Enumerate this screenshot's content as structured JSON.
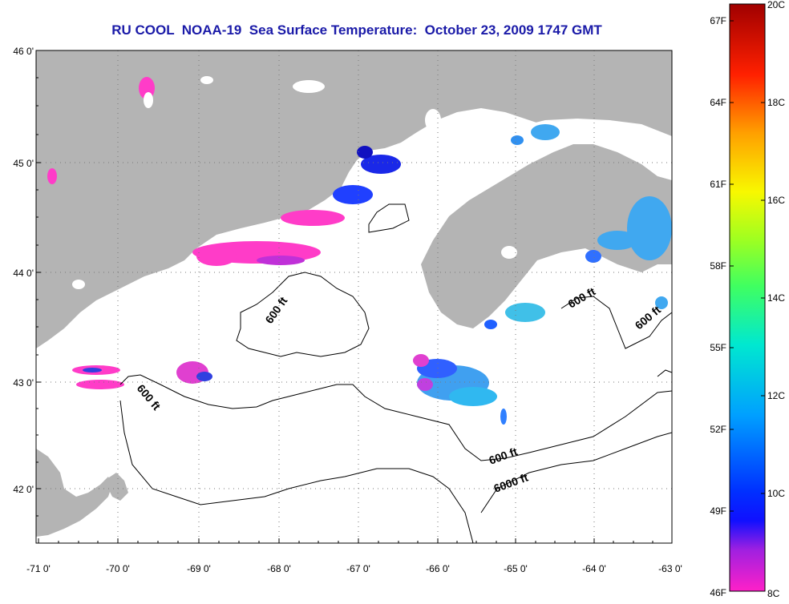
{
  "title": "RU COOL  NOAA-19  Sea Surface Temperature:  October 23, 2009 1747 GMT",
  "map": {
    "lon_ticks": [
      "-71 0'",
      "-70 0'",
      "-69 0'",
      "-68 0'",
      "-67 0'",
      "-66 0'",
      "-65 0'",
      "-64 0'",
      "-63 0'"
    ],
    "lat_ticks": [
      "46 0'",
      "45 0'",
      "44 0'",
      "43 0'",
      "42 0'"
    ],
    "land_color": "#b4b4b4",
    "water_color": "#ffffff",
    "grid": true,
    "contour_labels": [
      {
        "text": "600 ft"
      },
      {
        "text": "600 ft"
      },
      {
        "text": "600 ft"
      },
      {
        "text": "600 ft"
      },
      {
        "text": "600 ft"
      },
      {
        "text": "6000 ft"
      }
    ]
  },
  "colorbar": {
    "fahrenheit": [
      "67F",
      "64F",
      "61F",
      "58F",
      "55F",
      "52F",
      "49F",
      "46F"
    ],
    "celsius": [
      "20C",
      "18C",
      "16C",
      "14C",
      "12C",
      "10C",
      "8C"
    ],
    "range_c": [
      8,
      20
    ]
  }
}
